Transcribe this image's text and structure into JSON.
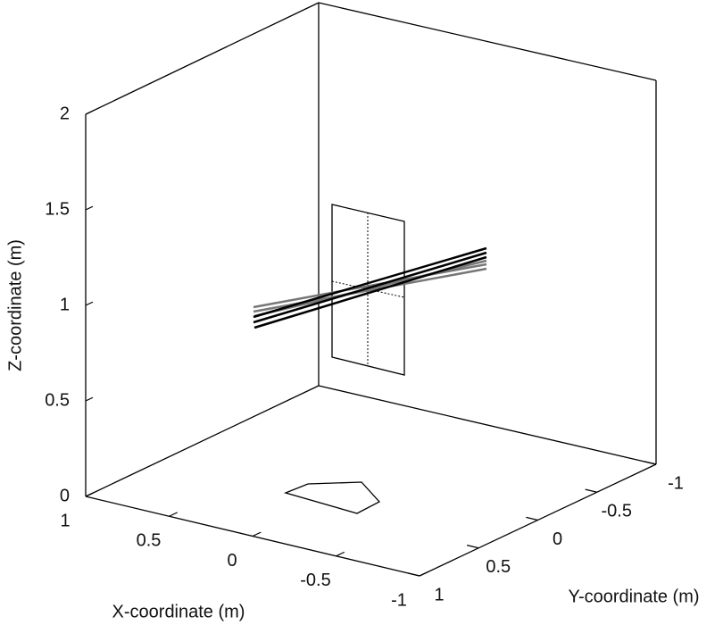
{
  "chart_data": {
    "type": "surface3d",
    "xlabel": "X-coordinate (m)",
    "ylabel": "Y-coordinate (m)",
    "zlabel": "Z-coordinate (m)",
    "xlim": [
      -1,
      1
    ],
    "ylim": [
      -1,
      1
    ],
    "zlim": [
      0,
      2
    ],
    "xticks": [
      1,
      0.5,
      0,
      -0.5,
      -1
    ],
    "yticks": [
      1,
      0.5,
      0,
      -0.5,
      -1
    ],
    "zticks": [
      0,
      0.5,
      1,
      1.5,
      2
    ]
  }
}
